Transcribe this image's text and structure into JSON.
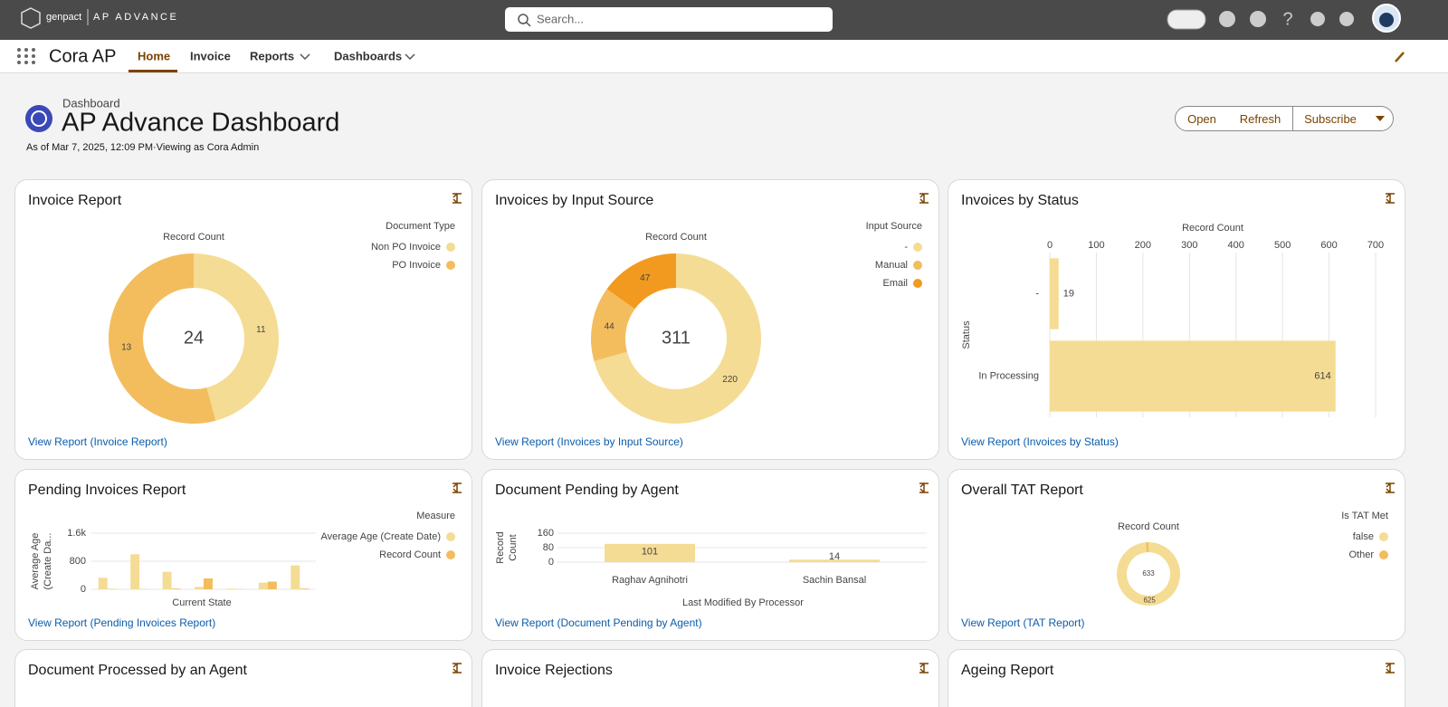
{
  "header": {
    "brand": "genpact",
    "product": "AP ADVANCE",
    "search_placeholder": "Search..."
  },
  "nav": {
    "app_name": "Cora AP",
    "tabs": [
      "Home",
      "Invoice",
      "Reports",
      "Dashboards"
    ]
  },
  "dashboard": {
    "label": "Dashboard",
    "title": "AP Advance Dashboard",
    "subtitle": "As of Mar 7, 2025, 12:09 PM·Viewing as Cora Admin",
    "buttons": [
      "Open",
      "Refresh",
      "Subscribe"
    ]
  },
  "widgets": [
    {
      "title": "Invoice Report",
      "link": "View Report (Invoice Report)",
      "chart": {
        "type": "donut",
        "axis_title": "Record Count",
        "legend_title": "Document Type",
        "total": 24,
        "categories": [
          "Non PO Invoice",
          "PO Invoice"
        ],
        "values": [
          11,
          13
        ],
        "colors": [
          "#f5dc94",
          "#f3bd5e"
        ]
      }
    },
    {
      "title": "Invoices by Input Source",
      "link": "View Report (Invoices by Input Source)",
      "chart": {
        "type": "donut",
        "axis_title": "Record Count",
        "legend_title": "Input Source",
        "total": 311,
        "categories": [
          "-",
          "Manual",
          "Email"
        ],
        "values": [
          220,
          44,
          47
        ],
        "colors": [
          "#f5dc94",
          "#f3bd5e",
          "#f29a1f"
        ]
      }
    },
    {
      "title": "Invoices by Status",
      "link": "View Report (Invoices by Status)",
      "chart": {
        "type": "hbar",
        "axis_title": "Record Count",
        "ylabel": "Status",
        "categories": [
          "-",
          "In Processing"
        ],
        "values": [
          19,
          614
        ],
        "color": "#f5dc94",
        "xlim": [
          0,
          700
        ],
        "xticks": [
          0,
          100,
          200,
          300,
          400,
          500,
          600,
          700
        ],
        "grid": true
      }
    },
    {
      "title": "Pending Invoices Report",
      "link": "View Report (Pending Invoices Report)",
      "chart": {
        "type": "grouped-bar",
        "legend_title": "Measure",
        "ylabel": [
          "Average Age",
          "(Create Da..."
        ],
        "xlabel": "Current State",
        "categories": [
          null,
          null,
          null,
          null,
          null,
          null,
          null
        ],
        "series": [
          {
            "name": "Average Age (Create Date)",
            "color": "#f5dc94",
            "values": [
              330,
              1000,
              500,
              70,
              20,
              190,
              680
            ]
          },
          {
            "name": "Record Count",
            "color": "#f3bd5e",
            "values": [
              10,
              5,
              20,
              310,
              5,
              220,
              20
            ]
          }
        ],
        "ylim": [
          0,
          1600
        ],
        "yticks": [
          0,
          800,
          {
            "value": 1600,
            "label": "1.6k"
          }
        ],
        "grid": true
      }
    },
    {
      "title": "Document Pending by Agent",
      "link": "View Report (Document Pending by Agent)",
      "chart": {
        "type": "bar",
        "ylabel": [
          "Record",
          "Count"
        ],
        "xlabel": "Last Modified By Processor",
        "categories": [
          "Raghav Agnihotri",
          "Sachin Bansal"
        ],
        "values": [
          101,
          14
        ],
        "color": "#f5dc94",
        "ylim": [
          0,
          160
        ],
        "yticks": [
          0,
          80,
          160
        ],
        "grid": true
      }
    },
    {
      "title": "Overall TAT Report",
      "link": "View Report (TAT Report)",
      "chart": {
        "type": "donut",
        "axis_title": "Record Count",
        "legend_title": "Is TAT Met",
        "total": 633,
        "categories": [
          "false",
          "Other"
        ],
        "values": [
          625,
          8
        ],
        "colors": [
          "#f5dc94",
          "#f3bd5e"
        ]
      }
    },
    {
      "title": "Document Processed by an Agent"
    },
    {
      "title": "Invoice Rejections"
    },
    {
      "title": "Ageing Report"
    }
  ]
}
